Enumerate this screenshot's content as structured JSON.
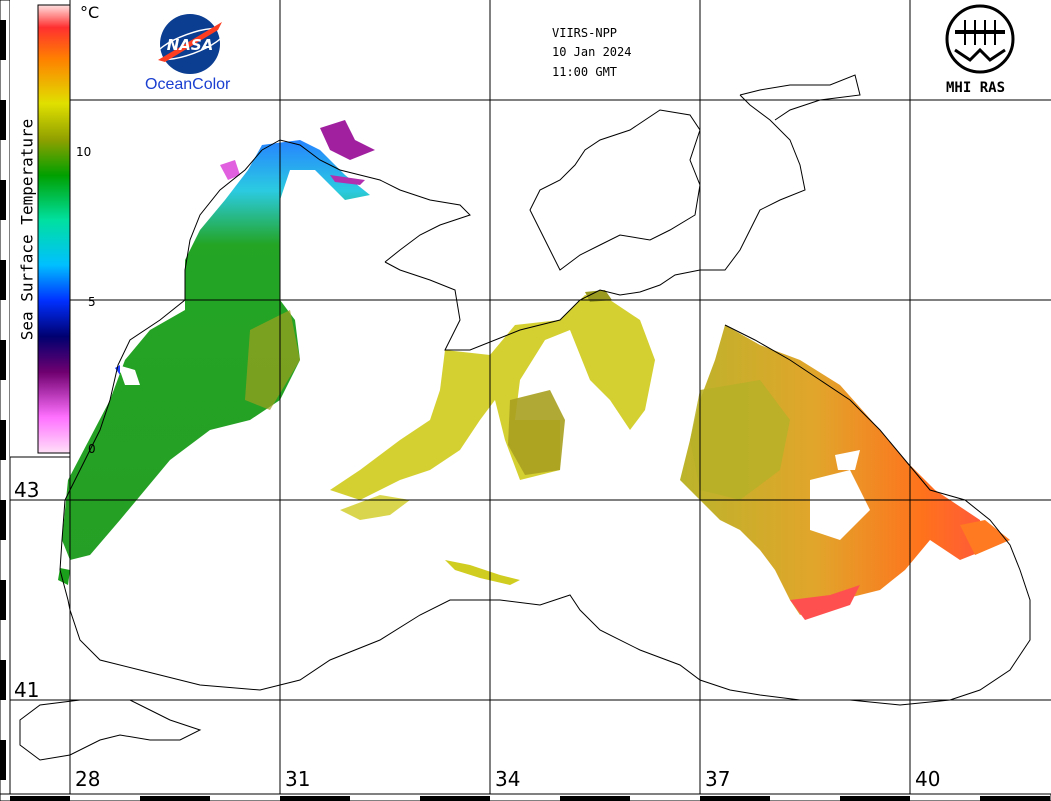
{
  "header": {
    "satellite": "VIIRS-NPP",
    "date": "10 Jan 2024",
    "time": "11:00 GMT"
  },
  "logos": {
    "nasa": "NASA",
    "oceancolor": "OceanColor",
    "mhi": "MHI RAS"
  },
  "colorbar": {
    "title": "Sea Surface Temperature",
    "unit": "°C",
    "ticks": [
      "10",
      "5",
      "0"
    ]
  },
  "axes": {
    "lat_labels": [
      "43",
      "41"
    ],
    "lon_labels": [
      "28",
      "31",
      "34",
      "37",
      "40"
    ]
  },
  "colors": {
    "cold": "#d060d0",
    "cool": "#20c0ff",
    "mid": "#1aa01a",
    "warm": "#d8d020",
    "hot": "#ff7a10"
  },
  "icons": [
    "nasa-logo-icon",
    "mhi-ras-logo-icon"
  ]
}
